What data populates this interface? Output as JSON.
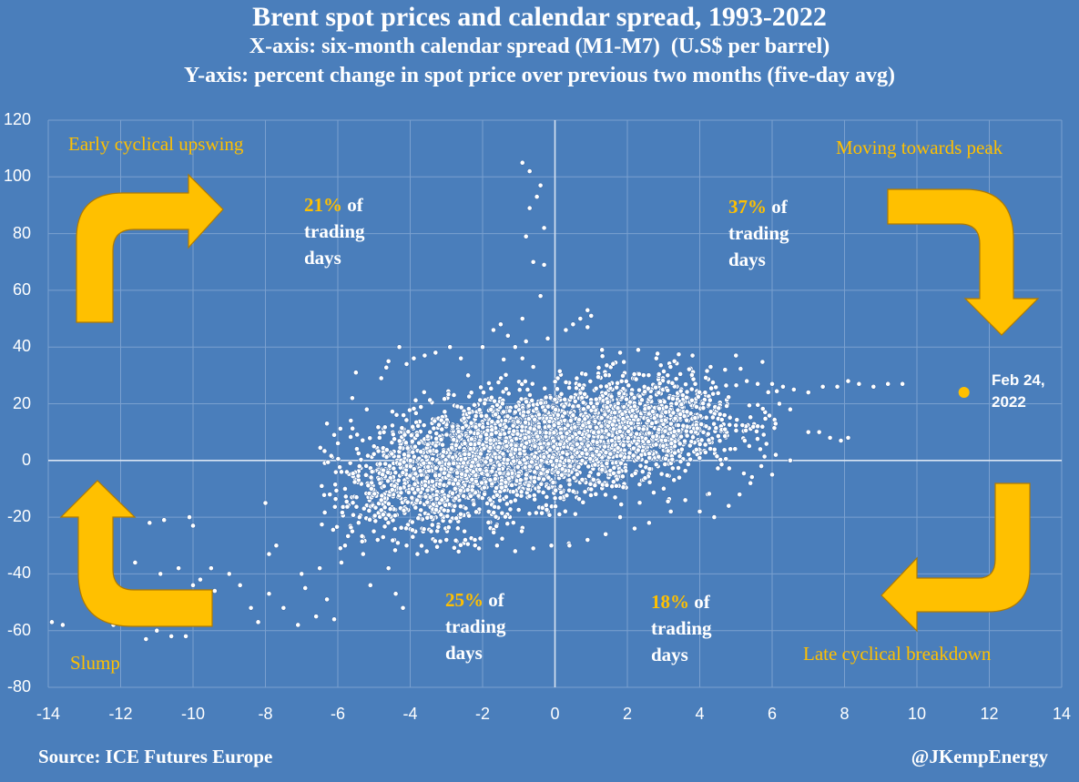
{
  "title": "Brent spot prices and calendar spread, 1993-2022",
  "subtitle_x": "X-axis: six-month calendar spread (M1-M7)  (U.S$ per barrel)",
  "subtitle_y": "Y-axis: percent change in spot price over previous two months (five-day avg)",
  "source": "Source: ICE Futures Europe",
  "handle": "@JKempEnergy",
  "quadrants": {
    "upper_left": "Early cyclical upswing",
    "upper_right": "Moving towards peak",
    "lower_left": "Slump",
    "lower_right": "Late cyclical breakdown"
  },
  "percent_labels": {
    "upper_left": {
      "pct": "21%",
      "of": "of",
      "line2": "trading",
      "line3": "days"
    },
    "upper_right": {
      "pct": "37%",
      "of": "of",
      "line2": "trading",
      "line3": "days"
    },
    "lower_left": {
      "pct": "25%",
      "of": "of",
      "line2": "trading",
      "line3": "days"
    },
    "lower_right": {
      "pct": "18%",
      "of": "of",
      "line2": "trading",
      "line3": "days"
    }
  },
  "highlight_label": {
    "line1": "Feb 24,",
    "line2": "2022"
  },
  "colors": {
    "background": "#4a7ebb",
    "points": "#ffffff",
    "accent": "#ffc000",
    "grid": "#7aa0cf"
  },
  "chart_data": {
    "type": "scatter",
    "title": "Brent spot prices and calendar spread, 1993-2022",
    "xlabel": "six-month calendar spread (M1-M7)  (U.S$ per barrel)",
    "ylabel": "percent change in spot price over previous two months (five-day avg)",
    "xlim": [
      -14,
      14
    ],
    "ylim": [
      -80,
      120
    ],
    "xticks": [
      -14,
      -12,
      -10,
      -8,
      -6,
      -4,
      -2,
      0,
      2,
      4,
      6,
      8,
      10,
      12,
      14
    ],
    "yticks": [
      -80,
      -60,
      -40,
      -20,
      0,
      20,
      40,
      60,
      80,
      100,
      120
    ],
    "grid": true,
    "series": [
      {
        "points": [
          [
            -13.9,
            -57
          ],
          [
            -13.6,
            -58
          ],
          [
            -12.2,
            -58
          ],
          [
            -11.5,
            -55
          ],
          [
            -11.3,
            -63
          ],
          [
            -11.0,
            -60
          ],
          [
            -10.6,
            -62
          ],
          [
            -10.2,
            -62
          ],
          [
            -11.2,
            -22
          ],
          [
            -10.8,
            -21
          ],
          [
            -10.1,
            -20
          ],
          [
            -10.0,
            -23
          ],
          [
            -11.6,
            -36
          ],
          [
            -10.9,
            -40
          ],
          [
            -10.4,
            -38
          ],
          [
            -10.0,
            -44
          ],
          [
            -9.8,
            -42
          ],
          [
            -9.5,
            -38
          ],
          [
            -9.4,
            -46
          ],
          [
            -9.0,
            -40
          ],
          [
            -8.7,
            -44
          ],
          [
            -8.4,
            -52
          ],
          [
            -8.2,
            -57
          ],
          [
            -7.9,
            -47
          ],
          [
            -8.0,
            -15
          ],
          [
            -7.9,
            -33
          ],
          [
            -7.7,
            -30
          ],
          [
            -7.5,
            -52
          ],
          [
            -7.1,
            -58
          ],
          [
            -7.0,
            -40
          ],
          [
            -6.9,
            -45
          ],
          [
            -6.6,
            -55
          ],
          [
            -6.5,
            -38
          ],
          [
            -6.3,
            -49
          ],
          [
            -6.1,
            -56
          ],
          [
            -5.9,
            -36
          ],
          [
            -5.8,
            -30
          ],
          [
            -5.6,
            -25
          ],
          [
            -5.4,
            -20
          ],
          [
            -5.3,
            -33
          ],
          [
            -5.1,
            -44
          ],
          [
            -4.9,
            -28
          ],
          [
            -4.8,
            -14
          ],
          [
            -4.6,
            -38
          ],
          [
            -4.4,
            -47
          ],
          [
            -4.2,
            -52
          ],
          [
            -4.1,
            -30
          ],
          [
            -3.8,
            -33
          ],
          [
            -6.3,
            13
          ],
          [
            -6.1,
            9
          ],
          [
            -5.8,
            -10
          ],
          [
            -5.6,
            22
          ],
          [
            -5.5,
            31
          ],
          [
            -5.2,
            18
          ],
          [
            -5.0,
            5
          ],
          [
            -4.8,
            29
          ],
          [
            -4.6,
            35
          ],
          [
            -4.3,
            40
          ],
          [
            -4.1,
            34
          ],
          [
            -3.9,
            36
          ],
          [
            -3.6,
            37
          ],
          [
            -3.3,
            38
          ],
          [
            -2.9,
            40
          ],
          [
            -2.6,
            36
          ],
          [
            -2.4,
            30
          ],
          [
            -2.0,
            40
          ],
          [
            -1.7,
            46
          ],
          [
            -1.5,
            48
          ],
          [
            -1.3,
            44
          ],
          [
            -1.1,
            40
          ],
          [
            -0.9,
            36
          ],
          [
            -0.6,
            33
          ],
          [
            -0.9,
            105
          ],
          [
            -0.7,
            102
          ],
          [
            -0.4,
            97
          ],
          [
            -0.5,
            93
          ],
          [
            -0.7,
            89
          ],
          [
            -0.3,
            82
          ],
          [
            -0.8,
            79
          ],
          [
            -0.6,
            70
          ],
          [
            -0.3,
            69
          ],
          [
            -0.4,
            58
          ],
          [
            -0.9,
            50
          ],
          [
            -0.8,
            42
          ],
          [
            -0.2,
            43
          ],
          [
            0.3,
            46
          ],
          [
            0.5,
            48
          ],
          [
            0.7,
            50
          ],
          [
            0.9,
            53
          ],
          [
            1.0,
            51
          ],
          [
            0.9,
            47
          ],
          [
            1.3,
            39
          ],
          [
            1.8,
            38
          ],
          [
            2.3,
            39
          ],
          [
            2.8,
            36
          ],
          [
            3.3,
            35
          ],
          [
            3.8,
            37
          ],
          [
            4.3,
            33
          ],
          [
            4.7,
            32
          ],
          [
            5.0,
            37
          ],
          [
            5.3,
            28
          ],
          [
            5.6,
            27
          ],
          [
            6.0,
            27
          ],
          [
            6.3,
            26
          ],
          [
            6.6,
            25
          ],
          [
            7.0,
            24
          ],
          [
            7.4,
            26
          ],
          [
            7.8,
            26
          ],
          [
            8.1,
            28
          ],
          [
            8.4,
            27
          ],
          [
            8.8,
            26
          ],
          [
            9.2,
            27
          ],
          [
            9.6,
            27
          ],
          [
            6.2,
            20
          ],
          [
            6.5,
            18
          ],
          [
            7.0,
            10
          ],
          [
            7.3,
            10
          ],
          [
            7.6,
            8
          ],
          [
            7.9,
            7
          ],
          [
            8.1,
            8
          ],
          [
            6.0,
            -5
          ],
          [
            6.1,
            2
          ],
          [
            6.5,
            0
          ],
          [
            5.7,
            -2
          ],
          [
            5.4,
            -8
          ],
          [
            5.1,
            -12
          ],
          [
            4.8,
            -16
          ],
          [
            4.4,
            -20
          ],
          [
            4.0,
            -18
          ],
          [
            3.6,
            -14
          ],
          [
            3.2,
            -18
          ],
          [
            2.6,
            -22
          ],
          [
            2.2,
            -24
          ],
          [
            1.8,
            -20
          ],
          [
            1.4,
            -26
          ],
          [
            0.9,
            -28
          ],
          [
            0.4,
            -30
          ],
          [
            -0.1,
            -30
          ],
          [
            -0.6,
            -31
          ],
          [
            -1.1,
            -32
          ],
          [
            -1.6,
            -30
          ],
          [
            -2.1,
            -31
          ],
          [
            -2.5,
            -25
          ],
          [
            -3.0,
            -28
          ]
        ]
      }
    ],
    "cloud": {
      "description_ellipses": [
        {
          "cx": -0.5,
          "cy": 5,
          "sx": 2.1,
          "sy": 10.5,
          "rho": 0.35,
          "n": 2200
        },
        {
          "cx": 2.2,
          "cy": 12,
          "sx": 1.5,
          "sy": 9,
          "rho": 0.2,
          "n": 900
        },
        {
          "cx": -3.2,
          "cy": -6,
          "sx": 1.4,
          "sy": 11,
          "rho": 0.3,
          "n": 800
        }
      ]
    },
    "highlight": {
      "x": 11.3,
      "y": 24,
      "label": "Feb 24, 2022"
    }
  }
}
